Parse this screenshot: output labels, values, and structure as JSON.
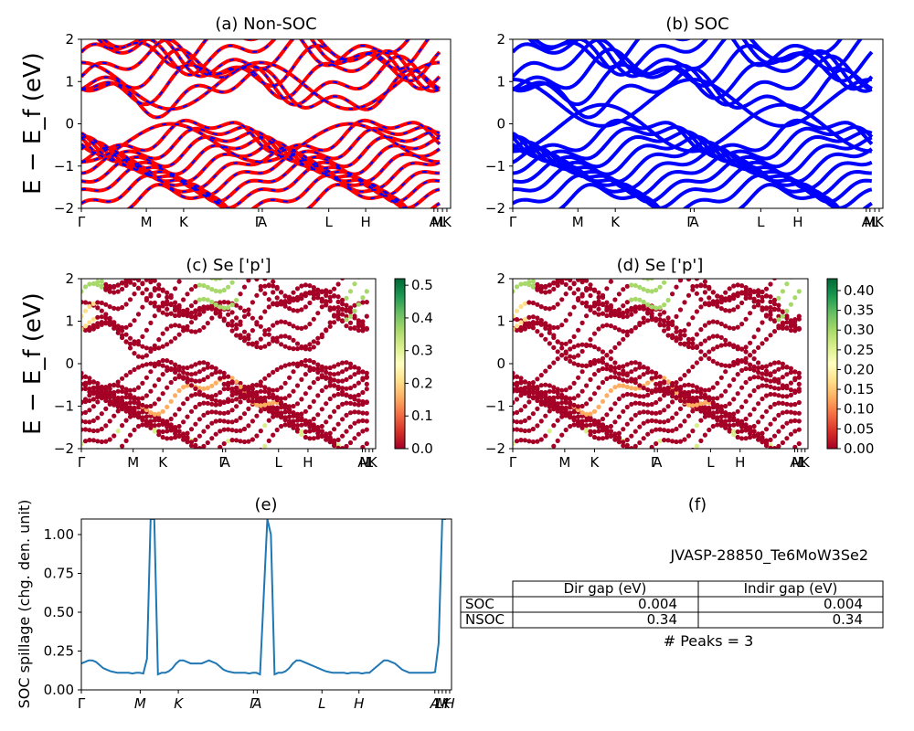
{
  "colors": {
    "nonsoc_red": "#ff0000",
    "nonsoc_blue": "#0000ff",
    "soc_blue": "#0000ff",
    "line": "#1f77b4"
  },
  "ylabel_main": "E − E_f (eV)",
  "kpath_labels": [
    "Γ",
    "M",
    "K",
    "Γ",
    "A",
    "L",
    "H",
    "A",
    "M",
    "L",
    "K"
  ],
  "chart_data": [
    {
      "type": "line",
      "panel": "a",
      "title": "(a) Non-SOC",
      "ylim": [
        -2,
        2
      ],
      "yticks": [
        "−2",
        "−1",
        "0",
        "1",
        "2"
      ],
      "series": [
        {
          "values": []
        }
      ]
    },
    {
      "type": "line",
      "panel": "b",
      "title": "(b) SOC",
      "ylim": [
        -2,
        2
      ],
      "yticks": [
        "−2",
        "−1",
        "0",
        "1",
        "2"
      ],
      "series": [
        {
          "values": []
        }
      ]
    },
    {
      "type": "scatter",
      "panel": "c",
      "title": "(c)  Se ['p']",
      "ylim": [
        -2,
        2
      ],
      "yticks": [
        "−2",
        "−1",
        "0",
        "1",
        "2"
      ],
      "colorbar": {
        "ticks": [
          "0.0",
          "0.1",
          "0.2",
          "0.3",
          "0.4",
          "0.5"
        ],
        "range": [
          0,
          0.52
        ]
      }
    },
    {
      "type": "scatter",
      "panel": "d",
      "title": "(d) Se ['p']",
      "ylim": [
        -2,
        2
      ],
      "yticks": [
        "−2",
        "−1",
        "0",
        "1",
        "2"
      ],
      "colorbar": {
        "ticks": [
          "0.00",
          "0.05",
          "0.10",
          "0.15",
          "0.20",
          "0.25",
          "0.30",
          "0.35",
          "0.40"
        ],
        "range": [
          0,
          0.43
        ]
      }
    },
    {
      "type": "line",
      "panel": "e",
      "title": "(e)",
      "ylabel": "SOC spillage (chg. den. unit)",
      "ylim": [
        0,
        1.1
      ],
      "yticks": [
        "0.00",
        "0.25",
        "0.50",
        "0.75",
        "1.00"
      ],
      "xticks": [
        "Γ",
        "M",
        "K",
        "Γ",
        "A",
        "L",
        "H",
        "A",
        "L",
        "M",
        "K",
        "H"
      ],
      "x": [
        0,
        0.04,
        0.08,
        0.12,
        0.16,
        0.2,
        0.24,
        0.28,
        0.32,
        0.36,
        0.4,
        0.44,
        0.48,
        0.52,
        0.56,
        0.6,
        0.64,
        0.68,
        0.72,
        0.76,
        0.8,
        0.84,
        0.88,
        0.92,
        0.96,
        1.0,
        1.04,
        1.08,
        1.12,
        1.16,
        1.2,
        1.24,
        1.28,
        1.32,
        1.36,
        1.4,
        1.44,
        1.48,
        1.52,
        1.56,
        1.6,
        1.64,
        1.68,
        1.72,
        1.76,
        1.8,
        1.84,
        1.88,
        1.92,
        1.96,
        2.0,
        2.04,
        2.08,
        2.12,
        2.16,
        2.2,
        2.24,
        2.28,
        2.32,
        2.36,
        2.4,
        2.44,
        2.48,
        2.52,
        2.56,
        2.6,
        2.64,
        2.68,
        2.72,
        2.76,
        2.8,
        2.84,
        2.88,
        2.92,
        2.96,
        3.0,
        3.04,
        3.08,
        3.12,
        3.16,
        3.2,
        3.24,
        3.28,
        3.32,
        3.36,
        3.4,
        3.44,
        3.48,
        3.52,
        3.56,
        3.6,
        3.64,
        3.68,
        3.72,
        3.76,
        3.8,
        3.84,
        3.88,
        3.92,
        3.96,
        4.0
      ],
      "series": [
        {
          "values": [
            0.17,
            0.18,
            0.19,
            0.19,
            0.18,
            0.16,
            0.14,
            0.13,
            0.12,
            0.115,
            0.11,
            0.11,
            0.11,
            0.11,
            0.105,
            0.11,
            0.11,
            0.105,
            0.2,
            1.1,
            1.1,
            0.1,
            0.11,
            0.11,
            0.12,
            0.14,
            0.17,
            0.19,
            0.19,
            0.18,
            0.17,
            0.17,
            0.17,
            0.17,
            0.18,
            0.19,
            0.18,
            0.17,
            0.15,
            0.13,
            0.12,
            0.115,
            0.11,
            0.11,
            0.11,
            0.11,
            0.105,
            0.11,
            0.11,
            0.1,
            0.6,
            1.1,
            1.0,
            0.1,
            0.11,
            0.11,
            0.12,
            0.14,
            0.17,
            0.19,
            0.19,
            0.18,
            0.17,
            0.16,
            0.15,
            0.14,
            0.13,
            0.12,
            0.115,
            0.11,
            0.11,
            0.11,
            0.11,
            0.105,
            0.11,
            0.11,
            0.11,
            0.105,
            0.11,
            0.11,
            0.13,
            0.15,
            0.17,
            0.19,
            0.19,
            0.18,
            0.17,
            0.15,
            0.13,
            0.12,
            0.11,
            0.11,
            0.11,
            0.11,
            0.11,
            0.11,
            0.11,
            0.115,
            0.3,
            1.1,
            1.1
          ]
        }
      ]
    },
    {
      "type": "table",
      "panel": "f",
      "title": "(f)",
      "caption": "JVASP-28850_Te6MoW3Se2",
      "columns": [
        "Dir gap (eV)",
        "Indir gap (eV)"
      ],
      "rows": [
        {
          "label": "SOC",
          "values": [
            "0.004",
            "0.004"
          ]
        },
        {
          "label": "NSOC",
          "values": [
            "0.34",
            "0.34"
          ]
        }
      ],
      "footer": "# Peaks = 3"
    }
  ]
}
